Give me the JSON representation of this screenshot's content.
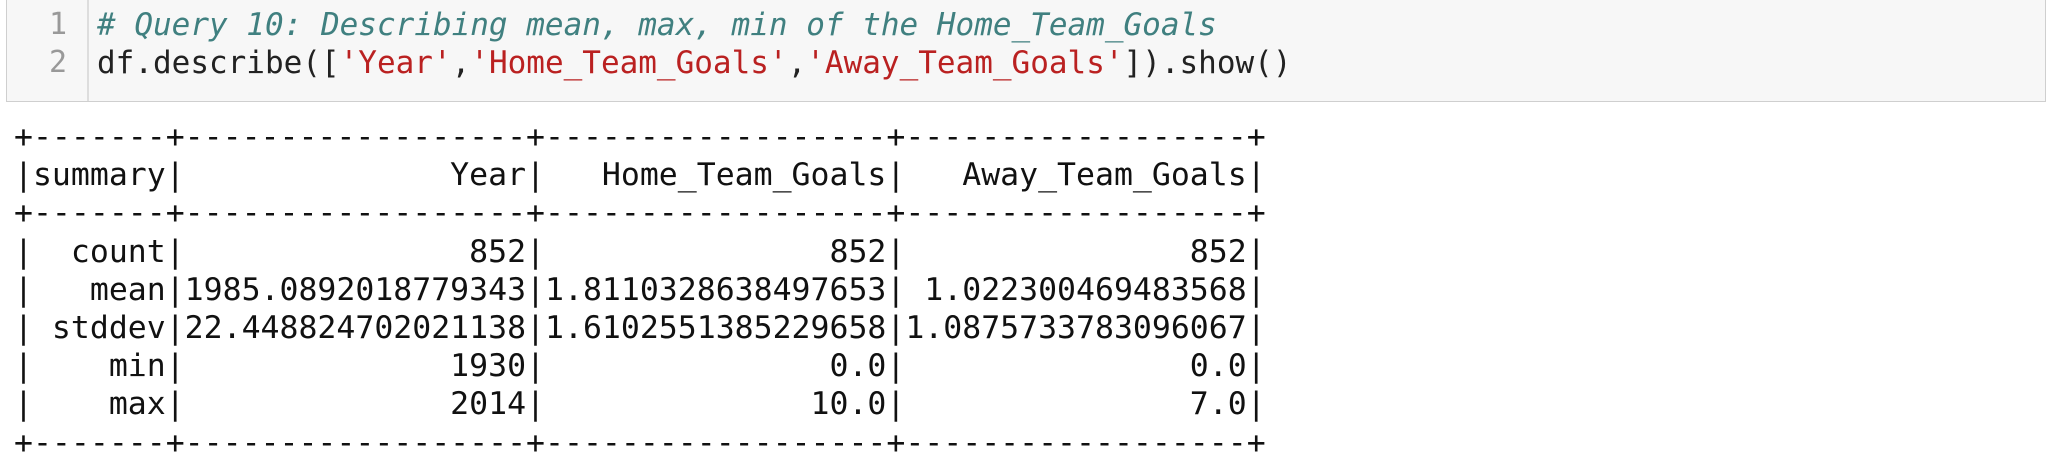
{
  "cell": {
    "line_numbers": [
      "1",
      "2"
    ],
    "comment": "# Query 10: Describing mean, max, min of the Home_Team_Goals",
    "code": {
      "prefix": "df.describe([",
      "arg1": "'Year'",
      "sep1": ",",
      "arg2": "'Home_Team_Goals'",
      "sep2": ",",
      "arg3": "'Away_Team_Goals'",
      "suffix": "]).show()"
    }
  },
  "output": {
    "border": "+-------+------------------+------------------+------------------+",
    "header": "|summary|              Year|   Home_Team_Goals|   Away_Team_Goals|",
    "rows": [
      "|  count|               852|               852|               852|",
      "|   mean|1985.0892018779343|1.8110328638497653| 1.022300469483568|",
      "| stddev|22.448824702021138|1.6102551385229658|1.0875733783096067|",
      "|    min|              1930|               0.0|               0.0|",
      "|    max|              2014|              10.0|               7.0|"
    ]
  },
  "colors": {
    "comment": "#408080",
    "string": "#ba2121",
    "code": "#222222",
    "line_number": "#999999",
    "cell_background": "#f7f7f7"
  }
}
